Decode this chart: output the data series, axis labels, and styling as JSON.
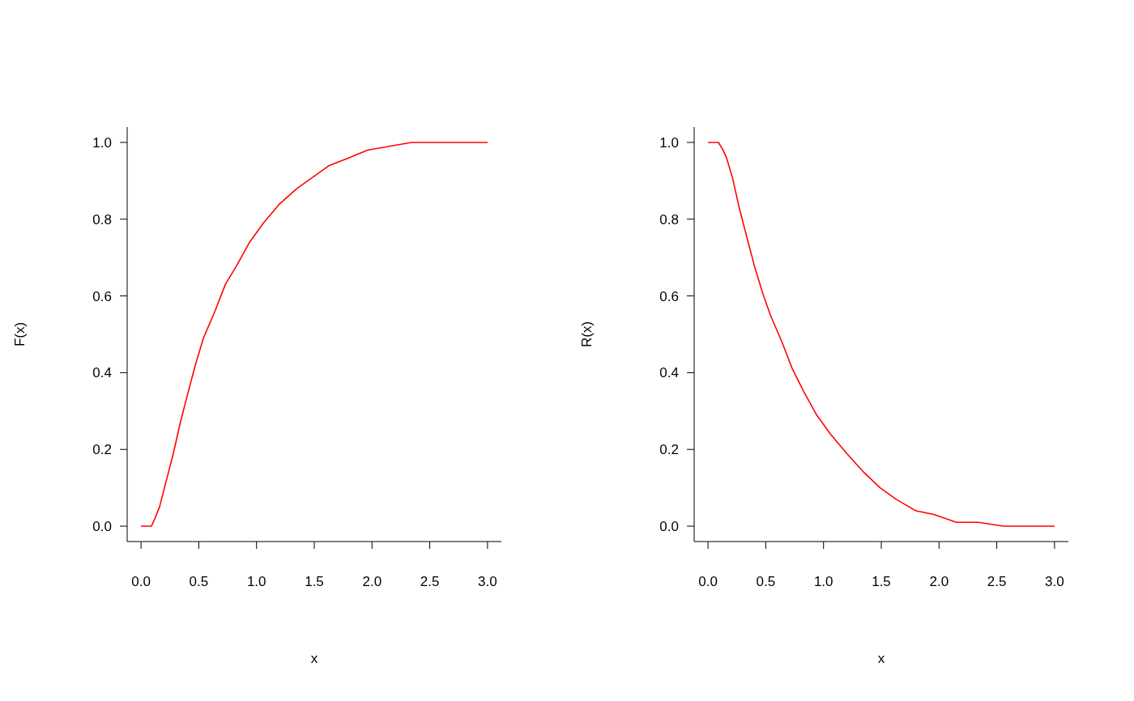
{
  "chart_data": [
    {
      "type": "line",
      "xlabel": "x",
      "ylabel": "F(x)",
      "color": "#ff0000",
      "marker": "none",
      "line_style": "solid",
      "grid": false,
      "legend": false,
      "xlim": [
        -0.12,
        3.12
      ],
      "ylim": [
        -0.04,
        1.04
      ],
      "xticks": [
        {
          "value": 0,
          "label": "0.0"
        },
        {
          "value": 0.5,
          "label": "0.5"
        },
        {
          "value": 1,
          "label": "1.0"
        },
        {
          "value": 1.5,
          "label": "1.5"
        },
        {
          "value": 2,
          "label": "2.0"
        },
        {
          "value": 2.5,
          "label": "2.5"
        },
        {
          "value": 3,
          "label": "3.0"
        }
      ],
      "yticks": [
        {
          "value": 0,
          "label": "0.0"
        },
        {
          "value": 0.2,
          "label": "0.2"
        },
        {
          "value": 0.4,
          "label": "0.4"
        },
        {
          "value": 0.6,
          "label": "0.6"
        },
        {
          "value": 0.8,
          "label": "0.8"
        },
        {
          "value": 1,
          "label": "1.0"
        }
      ],
      "x": [
        0,
        0.06,
        0.09,
        0.12,
        0.16,
        0.22,
        0.28,
        0.34,
        0.4,
        0.47,
        0.54,
        0.64,
        0.73,
        0.83,
        0.94,
        1.06,
        1.2,
        1.35,
        1.49,
        1.63,
        1.8,
        1.96,
        2.15,
        2.34,
        2.56,
        3.0
      ],
      "values": [
        0,
        0,
        0.0,
        0.02,
        0.05,
        0.12,
        0.19,
        0.27,
        0.34,
        0.42,
        0.49,
        0.56,
        0.63,
        0.68,
        0.74,
        0.79,
        0.84,
        0.88,
        0.91,
        0.94,
        0.96,
        0.98,
        0.99,
        1.0,
        1.0,
        1.0
      ]
    },
    {
      "type": "line",
      "xlabel": "x",
      "ylabel": "R(x)",
      "color": "#ff0000",
      "marker": "none",
      "line_style": "solid",
      "grid": false,
      "legend": false,
      "xlim": [
        -0.12,
        3.12
      ],
      "ylim": [
        -0.04,
        1.04
      ],
      "xticks": [
        {
          "value": 0,
          "label": "0.0"
        },
        {
          "value": 0.5,
          "label": "0.5"
        },
        {
          "value": 1,
          "label": "1.0"
        },
        {
          "value": 1.5,
          "label": "1.5"
        },
        {
          "value": 2,
          "label": "2.0"
        },
        {
          "value": 2.5,
          "label": "2.5"
        },
        {
          "value": 3,
          "label": "3.0"
        }
      ],
      "yticks": [
        {
          "value": 0,
          "label": "0.0"
        },
        {
          "value": 0.2,
          "label": "0.2"
        },
        {
          "value": 0.4,
          "label": "0.4"
        },
        {
          "value": 0.6,
          "label": "0.6"
        },
        {
          "value": 0.8,
          "label": "0.8"
        },
        {
          "value": 1,
          "label": "1.0"
        }
      ],
      "x": [
        0,
        0.06,
        0.09,
        0.13,
        0.16,
        0.21,
        0.27,
        0.33,
        0.4,
        0.47,
        0.54,
        0.64,
        0.73,
        0.83,
        0.94,
        1.06,
        1.2,
        1.35,
        1.49,
        1.63,
        1.8,
        1.96,
        2.15,
        2.34,
        2.56,
        3.0
      ],
      "values": [
        1.0,
        1.0,
        1.0,
        0.98,
        0.96,
        0.91,
        0.83,
        0.76,
        0.68,
        0.61,
        0.55,
        0.48,
        0.41,
        0.35,
        0.29,
        0.24,
        0.19,
        0.14,
        0.1,
        0.07,
        0.04,
        0.03,
        0.01,
        0.01,
        0.0,
        0
      ]
    }
  ]
}
